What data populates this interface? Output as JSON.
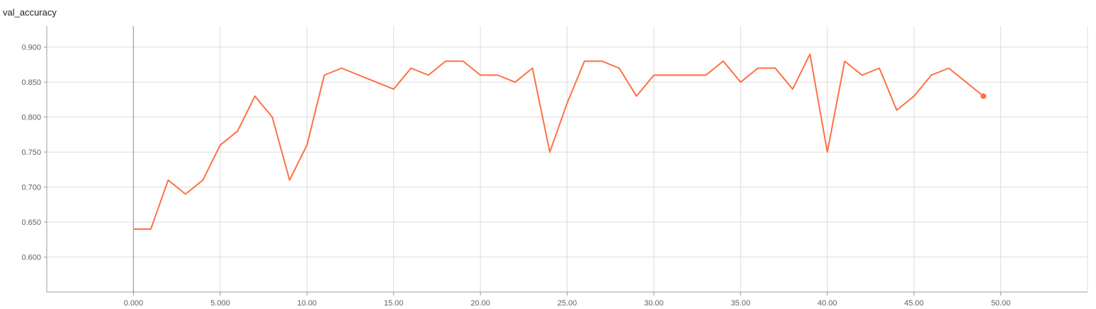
{
  "chart_data": {
    "type": "line",
    "title": "val_accuracy",
    "xlabel": "",
    "ylabel": "",
    "xlim": [
      -5,
      55
    ],
    "ylim": [
      0.55,
      0.93
    ],
    "grid": true,
    "x_ticks": [
      0,
      5,
      10,
      15,
      20,
      25,
      30,
      35,
      40,
      45,
      50
    ],
    "x_tick_labels": [
      "0.000",
      "5.000",
      "10.00",
      "15.00",
      "20.00",
      "25.00",
      "30.00",
      "35.00",
      "40.00",
      "45.00",
      "50.00"
    ],
    "y_ticks": [
      0.6,
      0.65,
      0.7,
      0.75,
      0.8,
      0.85,
      0.9
    ],
    "y_tick_labels": [
      "0.600",
      "0.650",
      "0.700",
      "0.750",
      "0.800",
      "0.850",
      "0.900"
    ],
    "series": [
      {
        "color": "#ff7043",
        "x": [
          0,
          1,
          2,
          3,
          4,
          5,
          6,
          7,
          8,
          9,
          10,
          11,
          12,
          13,
          14,
          15,
          16,
          17,
          18,
          19,
          20,
          21,
          22,
          23,
          24,
          25,
          26,
          27,
          28,
          29,
          30,
          31,
          32,
          33,
          34,
          35,
          36,
          37,
          38,
          39,
          40,
          41,
          42,
          43,
          44,
          45,
          46,
          47,
          48,
          49
        ],
        "values": [
          0.64,
          0.64,
          0.71,
          0.69,
          0.71,
          0.76,
          0.78,
          0.83,
          0.8,
          0.71,
          0.76,
          0.86,
          0.87,
          0.86,
          0.85,
          0.84,
          0.87,
          0.86,
          0.88,
          0.88,
          0.86,
          0.86,
          0.85,
          0.87,
          0.75,
          0.82,
          0.88,
          0.88,
          0.87,
          0.83,
          0.86,
          0.86,
          0.86,
          0.86,
          0.88,
          0.85,
          0.87,
          0.87,
          0.84,
          0.89,
          0.75,
          0.88,
          0.86,
          0.87,
          0.81,
          0.83,
          0.86,
          0.87,
          0.85,
          0.83
        ]
      }
    ]
  },
  "colors": {
    "line": "#ff7043",
    "grid": "#dddddd",
    "axis": "#9e9e9e",
    "zero_line": "#9e9e9e",
    "tick_text": "#616161"
  }
}
